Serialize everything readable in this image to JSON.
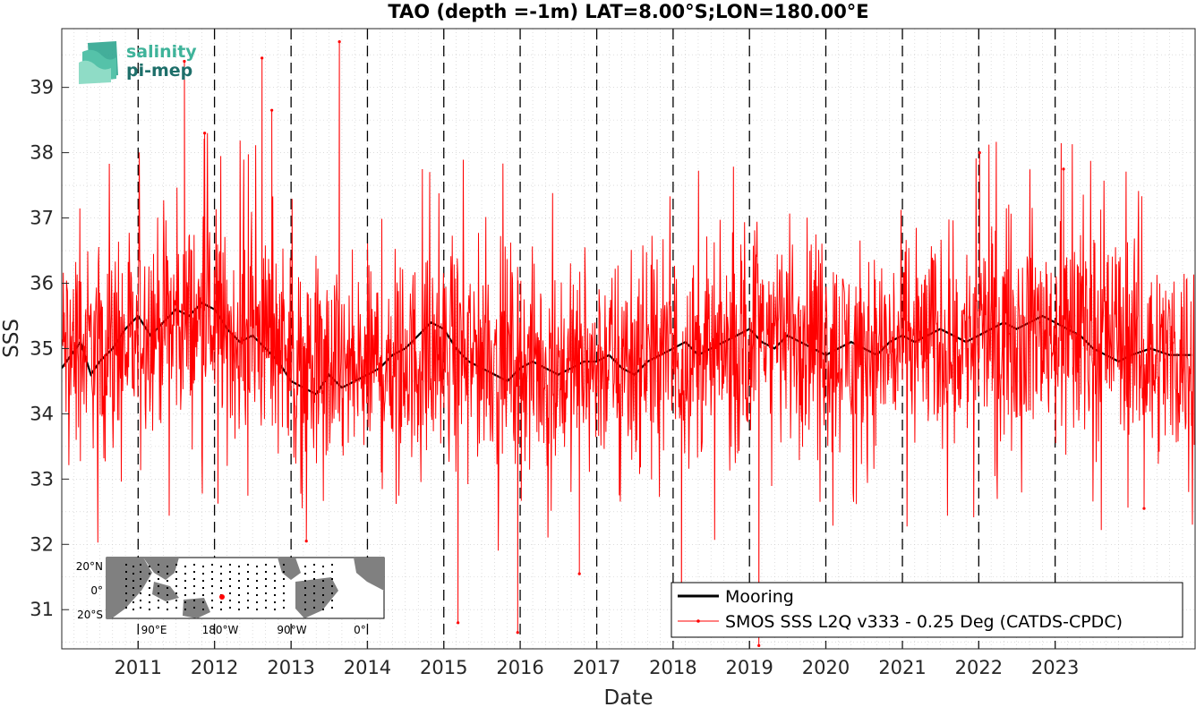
{
  "chart_data": {
    "type": "line",
    "title": "TAO (depth =-1m) LAT=8.00°S;LON=180.00°E",
    "xlabel": "Date",
    "ylabel": "SSS",
    "xlim": [
      "2010-01-01",
      "2024-10-31"
    ],
    "ylim": [
      30.4,
      39.9
    ],
    "x_ticks": [
      "2011",
      "2012",
      "2013",
      "2014",
      "2015",
      "2016",
      "2017",
      "2018",
      "2019",
      "2020",
      "2021",
      "2022",
      "2023"
    ],
    "y_ticks": [
      31,
      32,
      33,
      34,
      35,
      36,
      37,
      38,
      39
    ],
    "grid": "minor dotted",
    "year_boundaries": "dashed vertical lines",
    "legend_position": "bottom-right",
    "series": [
      {
        "name": "Mooring",
        "color": "#000000",
        "style": "thick line",
        "points": [
          [
            "2010-01-01",
            34.7
          ],
          [
            "2010-02-15",
            34.9
          ],
          [
            "2010-04-01",
            35.1
          ],
          [
            "2010-05-20",
            34.6
          ],
          [
            "2010-07-01",
            34.8
          ],
          [
            "2010-09-01",
            35.0
          ],
          [
            "2010-11-01",
            35.3
          ],
          [
            "2011-01-01",
            35.5
          ],
          [
            "2011-03-01",
            35.2
          ],
          [
            "2011-05-01",
            35.4
          ],
          [
            "2011-07-01",
            35.6
          ],
          [
            "2011-09-01",
            35.5
          ],
          [
            "2011-11-01",
            35.7
          ],
          [
            "2012-01-01",
            35.6
          ],
          [
            "2012-03-01",
            35.3
          ],
          [
            "2012-05-01",
            35.1
          ],
          [
            "2012-07-01",
            35.2
          ],
          [
            "2012-09-01",
            35.0
          ],
          [
            "2012-11-01",
            34.8
          ],
          [
            "2013-01-01",
            34.5
          ],
          [
            "2013-03-01",
            34.4
          ],
          [
            "2013-05-01",
            34.3
          ],
          [
            "2013-07-01",
            34.6
          ],
          [
            "2013-09-01",
            34.4
          ],
          [
            "2013-11-01",
            34.5
          ],
          [
            "2014-01-01",
            34.6
          ],
          [
            "2014-03-01",
            34.7
          ],
          [
            "2014-05-01",
            34.9
          ],
          [
            "2014-07-01",
            35.0
          ],
          [
            "2014-09-01",
            35.2
          ],
          [
            "2014-11-01",
            35.4
          ],
          [
            "2015-01-01",
            35.3
          ],
          [
            "2015-03-01",
            35.0
          ],
          [
            "2015-05-01",
            34.8
          ],
          [
            "2015-07-01",
            34.7
          ],
          [
            "2015-09-01",
            34.6
          ],
          [
            "2015-11-01",
            34.5
          ],
          [
            "2016-01-01",
            34.7
          ],
          [
            "2016-03-01",
            34.8
          ],
          [
            "2016-05-01",
            34.7
          ],
          [
            "2016-07-01",
            34.6
          ],
          [
            "2016-09-01",
            34.7
          ],
          [
            "2016-11-01",
            34.8
          ],
          [
            "2017-01-01",
            34.8
          ],
          [
            "2017-03-01",
            34.9
          ],
          [
            "2017-05-01",
            34.7
          ],
          [
            "2017-07-01",
            34.6
          ],
          [
            "2017-09-01",
            34.8
          ],
          [
            "2017-11-01",
            34.9
          ],
          [
            "2018-01-01",
            35.0
          ],
          [
            "2018-03-01",
            35.1
          ],
          [
            "2018-05-01",
            34.9
          ],
          [
            "2018-07-01",
            35.0
          ],
          [
            "2018-09-01",
            35.1
          ],
          [
            "2018-11-01",
            35.2
          ],
          [
            "2019-01-01",
            35.3
          ],
          [
            "2019-03-01",
            35.1
          ],
          [
            "2019-05-01",
            35.0
          ],
          [
            "2019-07-01",
            35.2
          ],
          [
            "2019-09-01",
            35.1
          ],
          [
            "2019-11-01",
            35.0
          ],
          [
            "2020-01-01",
            34.9
          ],
          [
            "2020-03-01",
            35.0
          ],
          [
            "2020-05-01",
            35.1
          ],
          [
            "2020-07-01",
            35.0
          ],
          [
            "2020-09-01",
            34.9
          ],
          [
            "2020-11-01",
            35.1
          ],
          [
            "2021-01-01",
            35.2
          ],
          [
            "2021-03-01",
            35.1
          ],
          [
            "2021-05-01",
            35.2
          ],
          [
            "2021-07-01",
            35.3
          ],
          [
            "2021-09-01",
            35.2
          ],
          [
            "2021-11-01",
            35.1
          ],
          [
            "2022-01-01",
            35.2
          ],
          [
            "2022-03-01",
            35.3
          ],
          [
            "2022-05-01",
            35.4
          ],
          [
            "2022-07-01",
            35.3
          ],
          [
            "2022-09-01",
            35.4
          ],
          [
            "2022-11-01",
            35.5
          ],
          [
            "2023-01-01",
            35.4
          ],
          [
            "2023-03-01",
            35.3
          ],
          [
            "2023-05-01",
            35.2
          ],
          [
            "2023-07-01",
            35.0
          ],
          [
            "2023-09-01",
            34.9
          ],
          [
            "2023-11-01",
            34.8
          ],
          [
            "2024-01-01",
            34.9
          ],
          [
            "2024-04-01",
            35.0
          ],
          [
            "2024-07-01",
            34.9
          ],
          [
            "2024-10-15",
            34.9
          ]
        ]
      },
      {
        "name": "SMOS SSS L2Q v333 - 0.25 Deg (CATDS-CPDC)",
        "color": "#ff0000",
        "style": "thin line with dots",
        "mean_by_year": [
          [
            "2010",
            35.0
          ],
          [
            "2011",
            35.4
          ],
          [
            "2012",
            35.2
          ],
          [
            "2013",
            34.6
          ],
          [
            "2014",
            34.8
          ],
          [
            "2015",
            34.9
          ],
          [
            "2016",
            34.7
          ],
          [
            "2017",
            34.8
          ],
          [
            "2018",
            34.9
          ],
          [
            "2019",
            35.3
          ],
          [
            "2020",
            35.0
          ],
          [
            "2021",
            35.1
          ],
          [
            "2022",
            35.3
          ],
          [
            "2023",
            35.2
          ],
          [
            "2024",
            34.9
          ]
        ],
        "peaks": [
          [
            "2011-08-10",
            39.4
          ],
          [
            "2012-08-15",
            39.45
          ],
          [
            "2013-08-20",
            39.7
          ],
          [
            "2012-10-01",
            38.65
          ],
          [
            "2011-11-15",
            38.3
          ],
          [
            "2022-01-05",
            38.0
          ],
          [
            "2023-02-10",
            37.75
          ]
        ],
        "troughs": [
          [
            "2015-03-10",
            30.8
          ],
          [
            "2015-12-20",
            30.65
          ],
          [
            "2018-02-10",
            30.6
          ],
          [
            "2019-02-15",
            30.45
          ],
          [
            "2013-03-15",
            32.05
          ],
          [
            "2016-10-10",
            31.55
          ],
          [
            "2024-03-01",
            32.55
          ]
        ]
      }
    ]
  },
  "logo": {
    "line1": "salinity",
    "line2": "pi-mep"
  },
  "inset_map": {
    "lat_ticks": [
      "20°N",
      "0°",
      "20°S"
    ],
    "lon_ticks": [
      "90°E",
      "180°W",
      "90°W",
      "0°"
    ],
    "location_marker_color": "#ff0000",
    "land_color": "#808080"
  }
}
